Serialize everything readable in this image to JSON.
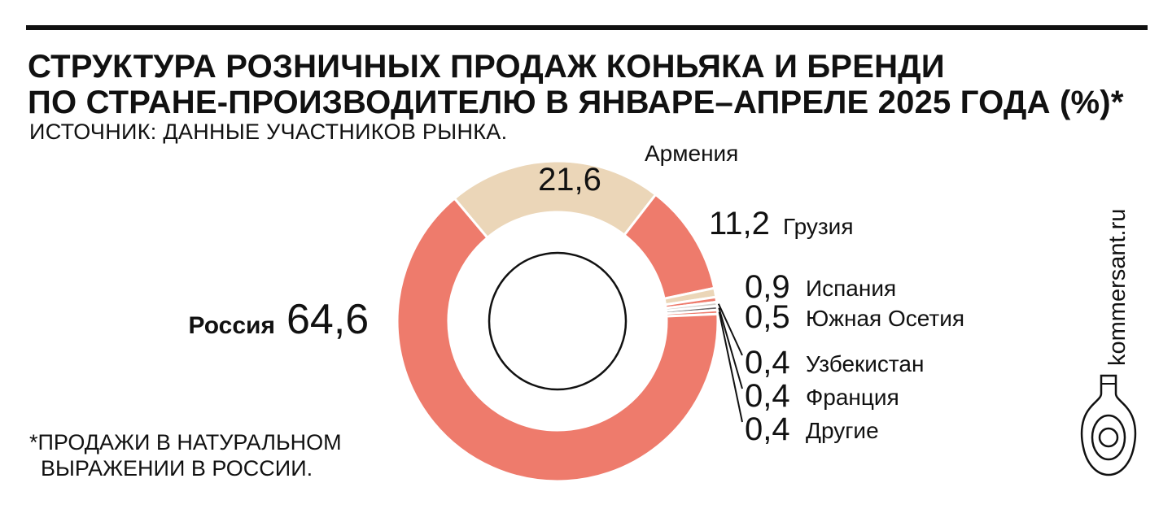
{
  "header": {
    "title_line1": "СТРУКТУРА РОЗНИЧНЫХ ПРОДАЖ КОНЬЯКА И БРЕНДИ",
    "title_line2": "ПО СТРАНЕ-ПРОИЗВОДИТЕЛЮ В ЯНВАРЕ–АПРЕЛЕ 2025 ГОДА (%)*",
    "source": "ИСТОЧНИК: ДАННЫЕ УЧАСТНИКОВ РЫНКА."
  },
  "footnote": {
    "line1": "*ПРОДАЖИ В НАТУРАЛЬНОМ",
    "line2": "ВЫРАЖЕНИИ В РОССИИ."
  },
  "brand": {
    "text": "kommersant.ru",
    "icon": "cognac-bottle-icon"
  },
  "colors": {
    "salmon": "#ee7b6c",
    "beige": "#ebd6b8",
    "light_grey": "#d4d0cc",
    "dark_grey": "#6b6769",
    "text": "#111111"
  },
  "chart_data": {
    "type": "donut",
    "title": "СТРУКТУРА РОЗНИЧНЫХ ПРОДАЖ КОНЬЯКА И БРЕНДИ ПО СТРАНЕ-ПРОИЗВОДИТЕЛЮ В ЯНВАРЕ–АПРЕЛЕ 2025 ГОДА (%)*",
    "unit": "%",
    "slices": [
      {
        "name": "Армения",
        "value": 21.6,
        "label": "21,6",
        "color": "#ebd6b8"
      },
      {
        "name": "Грузия",
        "value": 11.2,
        "label": "11,2",
        "color": "#ee7b6c"
      },
      {
        "name": "Испания",
        "value": 0.9,
        "label": "0,9",
        "color": "#ebd6b8"
      },
      {
        "name": "Южная Осетия",
        "value": 0.5,
        "label": "0,5",
        "color": "#ee7b6c"
      },
      {
        "name": "Узбекистан",
        "value": 0.4,
        "label": "0,4",
        "color": "#d4d0cc"
      },
      {
        "name": "Франция",
        "value": 0.4,
        "label": "0,4",
        "color": "#6b6769"
      },
      {
        "name": "Другие",
        "value": 0.4,
        "label": "0,4",
        "color": "#ee7b6c"
      },
      {
        "name": "Россия",
        "value": 64.6,
        "label": "64,6",
        "color": "#ee7b6c"
      }
    ]
  }
}
